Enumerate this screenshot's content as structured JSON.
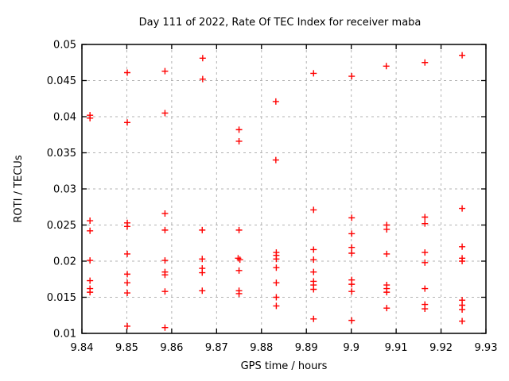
{
  "chart_data": {
    "type": "scatter",
    "title": "Day 111 of 2022, Rate Of TEC Index for receiver maba",
    "xlabel": "GPS time / hours",
    "ylabel": "ROTI / TECUs",
    "xlim": [
      9.84,
      9.93
    ],
    "ylim": [
      0.01,
      0.05
    ],
    "xticks": [
      9.84,
      9.85,
      9.86,
      9.87,
      9.88,
      9.89,
      9.9,
      9.91,
      9.92,
      9.93
    ],
    "xtick_labels": [
      "9.84",
      "9.85",
      "9.86",
      "9.87",
      "9.88",
      "9.89",
      "9.9",
      "9.91",
      "9.92",
      "9.93"
    ],
    "yticks": [
      0.01,
      0.015,
      0.02,
      0.025,
      0.03,
      0.035,
      0.04,
      0.045,
      0.05
    ],
    "ytick_labels": [
      "0.01",
      "0.015",
      "0.02",
      "0.025",
      "0.03",
      "0.035",
      "0.04",
      "0.045",
      "0.05"
    ],
    "grid": true,
    "legend": "none",
    "marker": "plus",
    "marker_color": "#ff0000",
    "grid_color": "#b3b3b3",
    "border_color": "#000000",
    "series": [
      {
        "name": "ROTI",
        "points": [
          [
            9.8418,
            0.0402
          ],
          [
            9.8418,
            0.0398
          ],
          [
            9.8418,
            0.0256
          ],
          [
            9.8418,
            0.0242
          ],
          [
            9.8418,
            0.0201
          ],
          [
            9.8418,
            0.0173
          ],
          [
            9.8418,
            0.0162
          ],
          [
            9.8418,
            0.0157
          ],
          [
            9.8501,
            0.0461
          ],
          [
            9.8501,
            0.0392
          ],
          [
            9.8501,
            0.0253
          ],
          [
            9.8501,
            0.0248
          ],
          [
            9.8501,
            0.021
          ],
          [
            9.8501,
            0.0182
          ],
          [
            9.8501,
            0.017
          ],
          [
            9.8501,
            0.0156
          ],
          [
            9.8501,
            0.011
          ],
          [
            9.8585,
            0.0463
          ],
          [
            9.8585,
            0.0405
          ],
          [
            9.8585,
            0.0266
          ],
          [
            9.8585,
            0.0243
          ],
          [
            9.8585,
            0.0201
          ],
          [
            9.8585,
            0.0185
          ],
          [
            9.8585,
            0.0181
          ],
          [
            9.8585,
            0.0158
          ],
          [
            9.8585,
            0.0108
          ],
          [
            9.8669,
            0.0481
          ],
          [
            9.8669,
            0.0452
          ],
          [
            9.8668,
            0.0243
          ],
          [
            9.8668,
            0.0203
          ],
          [
            9.8668,
            0.019
          ],
          [
            9.8668,
            0.0184
          ],
          [
            9.8668,
            0.0159
          ],
          [
            9.875,
            0.0382
          ],
          [
            9.875,
            0.0366
          ],
          [
            9.875,
            0.0243
          ],
          [
            9.8748,
            0.0204
          ],
          [
            9.8752,
            0.0202
          ],
          [
            9.875,
            0.0187
          ],
          [
            9.875,
            0.0159
          ],
          [
            9.875,
            0.0155
          ],
          [
            9.8832,
            0.0421
          ],
          [
            9.8832,
            0.034
          ],
          [
            9.8833,
            0.0212
          ],
          [
            9.8833,
            0.0208
          ],
          [
            9.8833,
            0.0203
          ],
          [
            9.8833,
            0.0191
          ],
          [
            9.8833,
            0.017
          ],
          [
            9.8833,
            0.015
          ],
          [
            9.8833,
            0.0138
          ],
          [
            9.8916,
            0.046
          ],
          [
            9.8916,
            0.0271
          ],
          [
            9.8916,
            0.0216
          ],
          [
            9.8916,
            0.0202
          ],
          [
            9.8916,
            0.0185
          ],
          [
            9.8916,
            0.0172
          ],
          [
            9.8916,
            0.0167
          ],
          [
            9.8916,
            0.0161
          ],
          [
            9.8916,
            0.012
          ],
          [
            9.9001,
            0.0456
          ],
          [
            9.9001,
            0.026
          ],
          [
            9.9001,
            0.0238
          ],
          [
            9.9001,
            0.0219
          ],
          [
            9.9001,
            0.0211
          ],
          [
            9.9001,
            0.0174
          ],
          [
            9.9001,
            0.0168
          ],
          [
            9.9001,
            0.0158
          ],
          [
            9.9001,
            0.0118
          ],
          [
            9.9078,
            0.047
          ],
          [
            9.9079,
            0.025
          ],
          [
            9.9079,
            0.0244
          ],
          [
            9.9079,
            0.021
          ],
          [
            9.9079,
            0.0167
          ],
          [
            9.9079,
            0.0162
          ],
          [
            9.9079,
            0.0157
          ],
          [
            9.9079,
            0.0135
          ],
          [
            9.9164,
            0.0475
          ],
          [
            9.9164,
            0.0261
          ],
          [
            9.9164,
            0.0252
          ],
          [
            9.9164,
            0.0212
          ],
          [
            9.9164,
            0.0198
          ],
          [
            9.9164,
            0.0162
          ],
          [
            9.9164,
            0.014
          ],
          [
            9.9164,
            0.0134
          ],
          [
            9.9247,
            0.0485
          ],
          [
            9.9247,
            0.0273
          ],
          [
            9.9247,
            0.022
          ],
          [
            9.9247,
            0.0204
          ],
          [
            9.9247,
            0.02
          ],
          [
            9.9247,
            0.0146
          ],
          [
            9.9247,
            0.0139
          ],
          [
            9.9247,
            0.0133
          ],
          [
            9.9247,
            0.0117
          ]
        ]
      }
    ]
  }
}
